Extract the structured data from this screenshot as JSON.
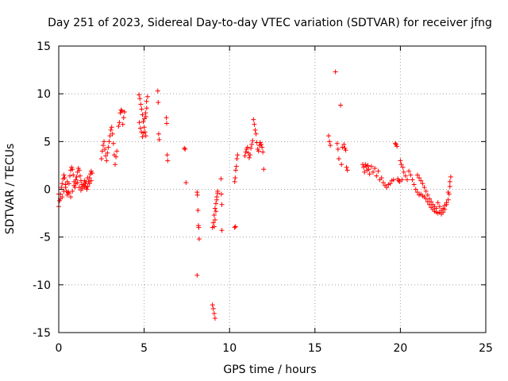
{
  "chart_data": {
    "type": "scatter",
    "title": "Day 251 of 2023, Sidereal Day-to-day VTEC variation (SDTVAR) for receiver jfng",
    "xlabel": "GPS time / hours",
    "ylabel": "SDTVAR / TECUs",
    "xlim": [
      0,
      25
    ],
    "ylim": [
      -15,
      15
    ],
    "xticks": [
      0,
      5,
      10,
      15,
      20,
      25
    ],
    "yticks": [
      -15,
      -10,
      -5,
      0,
      5,
      10,
      15
    ],
    "xtick_labels": [
      "0",
      "5",
      "10",
      "15",
      "20",
      "25"
    ],
    "ytick_labels": [
      "-15",
      "-10",
      "-5",
      "0",
      "5",
      "10",
      "15"
    ],
    "grid": true,
    "marker": "+",
    "series_color": "#ff0000",
    "segments": [
      [
        [
          0.0,
          -1.8
        ],
        [
          0.05,
          -1.2
        ],
        [
          0.1,
          -0.5
        ],
        [
          0.15,
          0.2
        ],
        [
          0.2,
          0.6
        ],
        [
          0.25,
          1.1
        ],
        [
          0.3,
          1.5
        ],
        [
          0.35,
          1.2
        ],
        [
          0.4,
          0.5
        ],
        [
          0.45,
          -0.2
        ],
        [
          0.5,
          -0.6
        ],
        [
          0.55,
          -0.3
        ],
        [
          0.6,
          0.6
        ],
        [
          0.65,
          1.4
        ],
        [
          0.7,
          2.0
        ],
        [
          0.75,
          2.3
        ],
        [
          0.8,
          2.1
        ],
        [
          0.85,
          1.5
        ],
        [
          0.9,
          0.8
        ],
        [
          0.95,
          0.2
        ],
        [
          1.0,
          0.6
        ],
        [
          1.05,
          1.3
        ],
        [
          1.1,
          1.8
        ],
        [
          1.15,
          2.2
        ],
        [
          1.2,
          2.0
        ],
        [
          1.25,
          1.4
        ],
        [
          1.3,
          0.9
        ],
        [
          1.35,
          0.5
        ],
        [
          1.4,
          0.3
        ],
        [
          1.45,
          0.5
        ],
        [
          1.5,
          0.9
        ],
        [
          1.55,
          0.6
        ],
        [
          1.6,
          0.2
        ],
        [
          1.65,
          0.0
        ],
        [
          1.7,
          0.3
        ],
        [
          1.75,
          0.8
        ],
        [
          1.8,
          1.2
        ],
        [
          1.85,
          1.6
        ],
        [
          1.9,
          1.9
        ],
        [
          1.95,
          1.7
        ]
      ],
      [
        [
          0.0,
          -0.5
        ],
        [
          0.1,
          -1.0
        ],
        [
          0.2,
          -0.8
        ],
        [
          0.3,
          -0.2
        ],
        [
          0.4,
          0.2
        ],
        [
          0.5,
          0.8
        ],
        [
          0.6,
          -0.4
        ],
        [
          0.7,
          -0.8
        ],
        [
          0.8,
          -0.2
        ],
        [
          0.9,
          0.4
        ],
        [
          1.0,
          1.0
        ],
        [
          1.1,
          0.7
        ],
        [
          1.2,
          0.2
        ],
        [
          1.3,
          -0.1
        ],
        [
          1.4,
          0.1
        ],
        [
          1.5,
          0.3
        ],
        [
          1.6,
          0.8
        ],
        [
          1.7,
          1.2
        ],
        [
          1.8,
          0.6
        ],
        [
          1.9,
          0.9
        ]
      ],
      [
        [
          2.5,
          3.2
        ],
        [
          2.55,
          4.0
        ],
        [
          2.6,
          4.6
        ],
        [
          2.65,
          5.0
        ],
        [
          2.7,
          4.2
        ],
        [
          2.75,
          3.5
        ],
        [
          2.8,
          3.0
        ],
        [
          2.85,
          3.8
        ],
        [
          2.9,
          4.4
        ],
        [
          2.95,
          5.0
        ],
        [
          3.0,
          5.6
        ],
        [
          3.05,
          6.2
        ],
        [
          3.1,
          6.5
        ],
        [
          3.15,
          5.8
        ],
        [
          3.2,
          4.8
        ],
        [
          3.25,
          3.6
        ],
        [
          3.3,
          2.6
        ],
        [
          3.35,
          3.4
        ],
        [
          3.4,
          4.0
        ]
      ],
      [
        [
          3.5,
          6.6
        ],
        [
          3.55,
          7.0
        ],
        [
          3.6,
          8.0
        ],
        [
          3.65,
          8.3
        ],
        [
          3.7,
          8.2
        ],
        [
          3.75,
          6.8
        ],
        [
          3.8,
          7.5
        ],
        [
          3.85,
          8.1
        ]
      ],
      [
        [
          4.7,
          9.9
        ],
        [
          4.75,
          9.5
        ],
        [
          4.8,
          8.9
        ],
        [
          4.85,
          8.4
        ],
        [
          4.9,
          7.8
        ],
        [
          4.95,
          7.1
        ],
        [
          5.0,
          6.5
        ],
        [
          5.05,
          6.0
        ],
        [
          5.1,
          5.6
        ],
        [
          4.72,
          7.0
        ],
        [
          4.78,
          6.4
        ],
        [
          4.84,
          6.0
        ],
        [
          4.9,
          5.5
        ],
        [
          4.96,
          5.9
        ],
        [
          5.02,
          7.4
        ],
        [
          5.08,
          8.0
        ],
        [
          5.14,
          9.2
        ],
        [
          5.2,
          9.7
        ],
        [
          5.15,
          8.5
        ],
        [
          5.1,
          7.6
        ]
      ],
      [
        [
          5.8,
          10.3
        ],
        [
          5.82,
          9.1
        ],
        [
          5.85,
          5.8
        ],
        [
          5.88,
          5.2
        ],
        [
          6.3,
          7.5
        ],
        [
          6.32,
          6.9
        ],
        [
          6.35,
          3.6
        ],
        [
          6.38,
          3.0
        ],
        [
          7.35,
          4.3
        ],
        [
          7.4,
          4.2
        ],
        [
          7.45,
          0.7
        ]
      ],
      [
        [
          8.1,
          -0.3
        ],
        [
          8.12,
          -0.6
        ],
        [
          8.15,
          -2.2
        ],
        [
          8.18,
          -3.8
        ],
        [
          8.2,
          -4.0
        ],
        [
          8.22,
          -5.2
        ],
        [
          8.1,
          -9.0
        ]
      ],
      [
        [
          9.0,
          -12.1
        ],
        [
          9.05,
          -12.5
        ],
        [
          9.1,
          -13.0
        ],
        [
          9.15,
          -13.5
        ],
        [
          9.0,
          -4.0
        ],
        [
          9.05,
          -3.5
        ],
        [
          9.1,
          -2.7
        ],
        [
          9.15,
          -2.0
        ],
        [
          9.2,
          -1.5
        ],
        [
          9.25,
          -0.8
        ],
        [
          9.3,
          -0.4
        ],
        [
          9.1,
          -3.9
        ],
        [
          9.15,
          -3.2
        ],
        [
          9.2,
          -2.3
        ],
        [
          9.25,
          -1.1
        ],
        [
          9.3,
          -0.2
        ],
        [
          9.5,
          1.1
        ],
        [
          9.52,
          -0.5
        ],
        [
          9.55,
          -1.6
        ],
        [
          9.55,
          -4.3
        ],
        [
          10.3,
          -4.0
        ],
        [
          10.35,
          -3.9
        ]
      ],
      [
        [
          10.3,
          0.8
        ],
        [
          10.33,
          1.2
        ],
        [
          10.36,
          2.0
        ],
        [
          10.4,
          2.4
        ],
        [
          10.43,
          3.2
        ],
        [
          10.47,
          3.6
        ],
        [
          10.9,
          3.5
        ],
        [
          10.95,
          3.9
        ],
        [
          11.0,
          4.2
        ],
        [
          11.05,
          4.4
        ],
        [
          11.1,
          3.8
        ],
        [
          11.15,
          3.3
        ],
        [
          11.2,
          3.6
        ],
        [
          11.25,
          4.3
        ],
        [
          11.3,
          4.7
        ],
        [
          11.35,
          5.1
        ],
        [
          11.4,
          7.3
        ],
        [
          11.45,
          6.8
        ],
        [
          11.5,
          6.2
        ],
        [
          11.55,
          5.8
        ],
        [
          11.6,
          4.9
        ],
        [
          11.65,
          4.2
        ],
        [
          11.7,
          4.0
        ],
        [
          11.75,
          4.6
        ],
        [
          11.8,
          4.9
        ],
        [
          11.85,
          4.7
        ],
        [
          11.9,
          4.4
        ],
        [
          11.95,
          3.9
        ],
        [
          12.0,
          2.1
        ]
      ],
      [
        [
          15.8,
          5.6
        ],
        [
          15.85,
          5.0
        ],
        [
          15.9,
          4.6
        ],
        [
          16.2,
          12.3
        ],
        [
          16.3,
          4.8
        ],
        [
          16.35,
          4.2
        ],
        [
          16.4,
          3.2
        ],
        [
          16.5,
          8.8
        ],
        [
          16.55,
          2.6
        ],
        [
          16.6,
          4.4
        ],
        [
          16.7,
          4.7
        ],
        [
          16.75,
          4.3
        ],
        [
          16.8,
          4.1
        ],
        [
          16.85,
          2.3
        ],
        [
          16.9,
          2.0
        ]
      ],
      [
        [
          17.8,
          2.6
        ],
        [
          17.85,
          2.3
        ],
        [
          17.9,
          1.8
        ],
        [
          17.95,
          2.6
        ],
        [
          18.0,
          2.4
        ],
        [
          18.05,
          2.0
        ],
        [
          18.1,
          2.5
        ],
        [
          18.15,
          2.1
        ],
        [
          18.2,
          1.6
        ],
        [
          18.3,
          2.4
        ],
        [
          18.4,
          1.8
        ],
        [
          18.5,
          2.2
        ],
        [
          18.6,
          1.4
        ],
        [
          18.7,
          1.9
        ],
        [
          18.8,
          1.0
        ],
        [
          18.9,
          1.2
        ],
        [
          19.0,
          0.7
        ],
        [
          19.1,
          0.4
        ],
        [
          19.2,
          0.2
        ],
        [
          19.3,
          0.5
        ],
        [
          19.4,
          0.6
        ],
        [
          19.5,
          0.9
        ],
        [
          19.6,
          1.0
        ],
        [
          19.7,
          4.8
        ],
        [
          19.75,
          4.7
        ],
        [
          19.8,
          4.5
        ],
        [
          19.85,
          1.1
        ],
        [
          19.9,
          0.9
        ],
        [
          19.95,
          0.8
        ],
        [
          20.0,
          3.0
        ],
        [
          20.05,
          2.6
        ],
        [
          20.1,
          1.0
        ],
        [
          20.15,
          2.3
        ],
        [
          20.2,
          1.8
        ],
        [
          20.3,
          1.4
        ],
        [
          20.4,
          1.0
        ]
      ],
      [
        [
          20.5,
          1.9
        ],
        [
          20.6,
          1.5
        ],
        [
          20.7,
          1.0
        ],
        [
          20.8,
          0.5
        ],
        [
          20.9,
          0.0
        ],
        [
          21.0,
          -0.3
        ],
        [
          21.1,
          -0.6
        ],
        [
          21.2,
          -0.5
        ],
        [
          21.3,
          -0.7
        ],
        [
          21.4,
          -0.8
        ],
        [
          21.5,
          -1.0
        ],
        [
          21.6,
          -1.3
        ],
        [
          21.7,
          -1.6
        ],
        [
          21.8,
          -1.9
        ],
        [
          21.9,
          -2.1
        ],
        [
          22.0,
          -2.3
        ],
        [
          22.1,
          -2.4
        ],
        [
          22.2,
          -2.5
        ],
        [
          22.3,
          -2.4
        ],
        [
          22.4,
          -2.2
        ],
        [
          22.5,
          -2.0
        ],
        [
          22.6,
          -1.7
        ],
        [
          22.7,
          -1.4
        ],
        [
          22.8,
          -1.1
        ],
        [
          22.85,
          -0.5
        ],
        [
          22.9,
          0.3
        ],
        [
          22.95,
          1.3
        ],
        [
          22.2,
          -1.4
        ],
        [
          22.3,
          -1.8
        ],
        [
          22.4,
          -2.6
        ],
        [
          22.5,
          -2.4
        ],
        [
          22.6,
          -2.1
        ],
        [
          22.7,
          -1.6
        ],
        [
          22.8,
          -0.3
        ],
        [
          22.9,
          0.8
        ]
      ],
      [
        [
          21.0,
          1.5
        ],
        [
          21.1,
          1.2
        ],
        [
          21.2,
          0.9
        ],
        [
          21.3,
          0.6
        ],
        [
          21.4,
          0.2
        ],
        [
          21.5,
          -0.2
        ],
        [
          21.6,
          -0.6
        ],
        [
          21.7,
          -1.0
        ],
        [
          21.8,
          -1.3
        ],
        [
          21.9,
          -1.6
        ],
        [
          22.0,
          -1.8
        ],
        [
          22.1,
          -2.0
        ]
      ]
    ]
  }
}
